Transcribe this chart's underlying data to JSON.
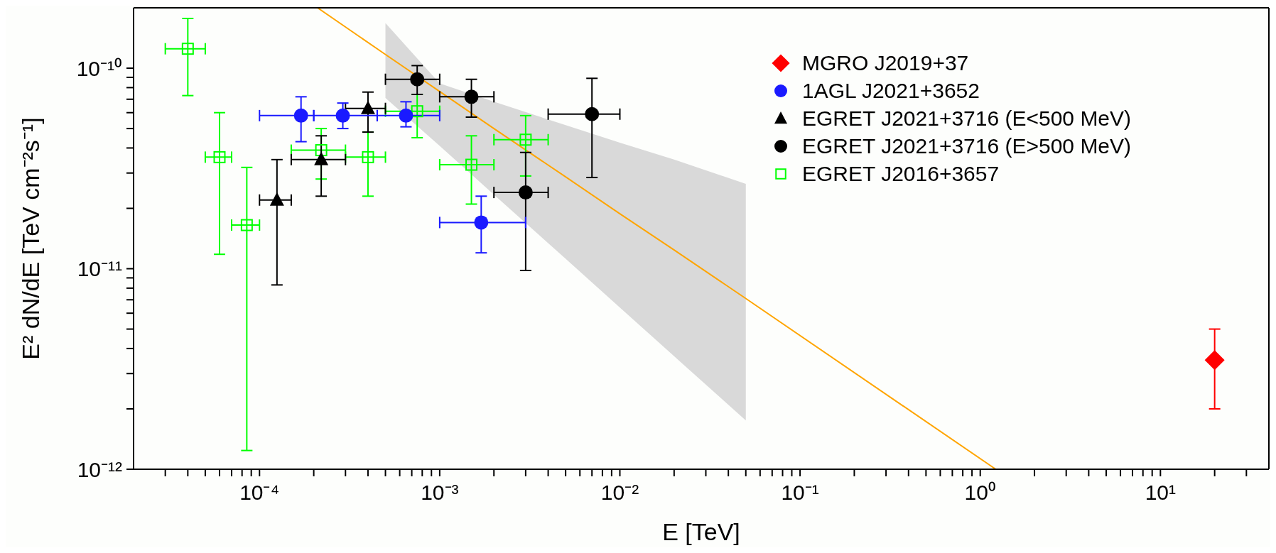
{
  "chart_data": {
    "type": "scatter",
    "xlabel": "E [TeV]",
    "ylabel": "E² dN/dE [TeV cm⁻²s⁻¹]",
    "log": "xy",
    "legend": "top right",
    "xlim": [
      2e-05,
      40
    ],
    "ylim": [
      1e-12,
      2e-10
    ],
    "xticks": [
      {
        "value": 3e-05,
        "label": null
      },
      {
        "value": 4e-05,
        "label": null
      },
      {
        "value": 5e-05,
        "label": null
      },
      {
        "value": 6e-05,
        "label": null
      },
      {
        "value": 7e-05,
        "label": null
      },
      {
        "value": 8e-05,
        "label": null
      },
      {
        "value": 9e-05,
        "label": null
      },
      {
        "value": 0.0001,
        "label": "10⁻⁴"
      },
      {
        "value": 0.0002,
        "label": null
      },
      {
        "value": 0.0003,
        "label": null
      },
      {
        "value": 0.0004,
        "label": null
      },
      {
        "value": 0.0005,
        "label": null
      },
      {
        "value": 0.0006,
        "label": null
      },
      {
        "value": 0.0007,
        "label": null
      },
      {
        "value": 0.0008,
        "label": null
      },
      {
        "value": 0.0009,
        "label": null
      },
      {
        "value": 0.001,
        "label": "10⁻³"
      },
      {
        "value": 0.002,
        "label": null
      },
      {
        "value": 0.003,
        "label": null
      },
      {
        "value": 0.004,
        "label": null
      },
      {
        "value": 0.005,
        "label": null
      },
      {
        "value": 0.006,
        "label": null
      },
      {
        "value": 0.007,
        "label": null
      },
      {
        "value": 0.008,
        "label": null
      },
      {
        "value": 0.009,
        "label": null
      },
      {
        "value": 0.01,
        "label": "10⁻²"
      },
      {
        "value": 0.02,
        "label": null
      },
      {
        "value": 0.03,
        "label": null
      },
      {
        "value": 0.04,
        "label": null
      },
      {
        "value": 0.05,
        "label": null
      },
      {
        "value": 0.06,
        "label": null
      },
      {
        "value": 0.07,
        "label": null
      },
      {
        "value": 0.08,
        "label": null
      },
      {
        "value": 0.09,
        "label": null
      },
      {
        "value": 0.1,
        "label": "10⁻¹"
      },
      {
        "value": 0.2,
        "label": null
      },
      {
        "value": 0.3,
        "label": null
      },
      {
        "value": 0.4,
        "label": null
      },
      {
        "value": 0.5,
        "label": null
      },
      {
        "value": 0.6,
        "label": null
      },
      {
        "value": 0.7,
        "label": null
      },
      {
        "value": 0.8,
        "label": null
      },
      {
        "value": 0.9,
        "label": null
      },
      {
        "value": 1,
        "label": "10⁰"
      },
      {
        "value": 2,
        "label": null
      },
      {
        "value": 3,
        "label": null
      },
      {
        "value": 4,
        "label": null
      },
      {
        "value": 5,
        "label": null
      },
      {
        "value": 6,
        "label": null
      },
      {
        "value": 7,
        "label": null
      },
      {
        "value": 8,
        "label": null
      },
      {
        "value": 9,
        "label": null
      },
      {
        "value": 10,
        "label": "10¹"
      },
      {
        "value": 20,
        "label": null
      },
      {
        "value": 30,
        "label": null
      }
    ],
    "yticks": [
      {
        "value": 1e-12,
        "label": "10⁻¹²"
      },
      {
        "value": 2e-12,
        "label": null
      },
      {
        "value": 3e-12,
        "label": null
      },
      {
        "value": 4e-12,
        "label": null
      },
      {
        "value": 5e-12,
        "label": null
      },
      {
        "value": 6e-12,
        "label": null
      },
      {
        "value": 7e-12,
        "label": null
      },
      {
        "value": 8e-12,
        "label": null
      },
      {
        "value": 9e-12,
        "label": null
      },
      {
        "value": 1e-11,
        "label": "10⁻¹¹"
      },
      {
        "value": 2e-11,
        "label": null
      },
      {
        "value": 3e-11,
        "label": null
      },
      {
        "value": 4e-11,
        "label": null
      },
      {
        "value": 5e-11,
        "label": null
      },
      {
        "value": 6e-11,
        "label": null
      },
      {
        "value": 7e-11,
        "label": null
      },
      {
        "value": 8e-11,
        "label": null
      },
      {
        "value": 9e-11,
        "label": null
      },
      {
        "value": 1e-10,
        "label": "10⁻¹⁰"
      }
    ],
    "series": [
      {
        "type": "line",
        "color": "#ffa500",
        "x": [
          0.00021,
          0.0005,
          0.001,
          0.002,
          0.005,
          0.01,
          0.02,
          0.05,
          1.22
        ],
        "values": [
          2e-10,
          1.17e-10,
          7.65e-11,
          5e-11,
          2.87e-11,
          1.88e-11,
          1.24e-11,
          7.1e-12,
          1e-12
        ],
        "lower": [
          null,
          7.1e-11,
          4.1e-11,
          2.34e-11,
          1.12e-11,
          6.4e-12,
          3.66e-12,
          1.75e-12,
          null
        ],
        "upper": [
          null,
          1.68e-10,
          8.4e-11,
          6.8e-11,
          5.2e-11,
          4.25e-11,
          3.5e-11,
          2.65e-11,
          null
        ]
      },
      {
        "name": "MGRO J2019+37",
        "marker": "diamond",
        "color": "#ff0000",
        "x": [
          20
        ],
        "values": [
          3.5e-12
        ],
        "errors": [
          [
            2e-12,
            5e-12
          ]
        ]
      },
      {
        "name": "1AGL J2021+3652",
        "marker": "circle",
        "color": "#1a1aff",
        "x": [
          0.00017,
          0.00029,
          0.00065,
          0.0017
        ],
        "values": [
          5.8e-11,
          5.8e-11,
          5.8e-11,
          1.7e-11
        ],
        "errors": [
          [
            4.3e-11,
            7.2e-11
          ],
          [
            5e-11,
            6.7e-11
          ],
          [
            5.1e-11,
            6.8e-11
          ],
          [
            1.2e-11,
            2.3e-11
          ]
        ],
        "xerrors": [
          [
            0.0001,
            0.0002
          ],
          [
            0.0002,
            0.00045
          ],
          [
            0.00045,
            0.001
          ],
          [
            0.001,
            0.003
          ]
        ]
      },
      {
        "name": "EGRET J2021+3716 (E<500 MeV)",
        "marker": "triangle",
        "color": "#000000",
        "x": [
          0.000125,
          0.00022,
          0.0004
        ],
        "values": [
          2.2e-11,
          3.5e-11,
          6.3e-11
        ],
        "errors": [
          [
            8.3e-12,
            3.5e-11
          ],
          [
            2.3e-11,
            4.6e-11
          ],
          [
            4.8e-11,
            7.6e-11
          ]
        ],
        "xerrors": [
          [
            0.0001,
            0.00015
          ],
          [
            0.00015,
            0.0003
          ],
          [
            0.0003,
            0.0005
          ]
        ]
      },
      {
        "name": "EGRET J2021+3716 (E>500 MeV)",
        "marker": "circle",
        "color": "#000000",
        "x": [
          0.00075,
          0.0015,
          0.003,
          0.007
        ],
        "values": [
          8.8e-11,
          7.2e-11,
          2.4e-11,
          5.9e-11
        ],
        "errors": [
          [
            7.4e-11,
            1.03e-10
          ],
          [
            5.7e-11,
            8.8e-11
          ],
          [
            9.8e-12,
            3.8e-11
          ],
          [
            2.85e-11,
            8.9e-11
          ]
        ],
        "xerrors": [
          [
            0.0005,
            0.001
          ],
          [
            0.001,
            0.002
          ],
          [
            0.002,
            0.004
          ],
          [
            0.004,
            0.01
          ]
        ]
      },
      {
        "name": "EGRET J2016+3657",
        "marker": "square",
        "color": "#00ff00",
        "x": [
          4e-05,
          6e-05,
          8.5e-05,
          0.00022,
          0.0004,
          0.00075,
          0.0015,
          0.003
        ],
        "values": [
          1.25e-10,
          3.6e-11,
          1.65e-11,
          3.9e-11,
          3.6e-11,
          6.1e-11,
          3.3e-11,
          4.4e-11
        ],
        "errors": [
          [
            7.3e-11,
            1.77e-10
          ],
          [
            1.18e-11,
            6e-11
          ],
          [
            1.24e-12,
            3.2e-11
          ],
          [
            2.8e-11,
            5e-11
          ],
          [
            2.3e-11,
            4.8e-11
          ],
          [
            4.5e-11,
            7.4e-11
          ],
          [
            2.1e-11,
            4.6e-11
          ],
          [
            2.9e-11,
            5.8e-11
          ]
        ],
        "xerrors": [
          [
            3e-05,
            5e-05
          ],
          [
            5e-05,
            7e-05
          ],
          [
            7e-05,
            0.0001
          ],
          [
            0.00015,
            0.0003
          ],
          [
            0.0003,
            0.0005
          ],
          [
            0.0005,
            0.001
          ],
          [
            0.001,
            0.002
          ],
          [
            0.002,
            0.004
          ]
        ]
      }
    ]
  }
}
